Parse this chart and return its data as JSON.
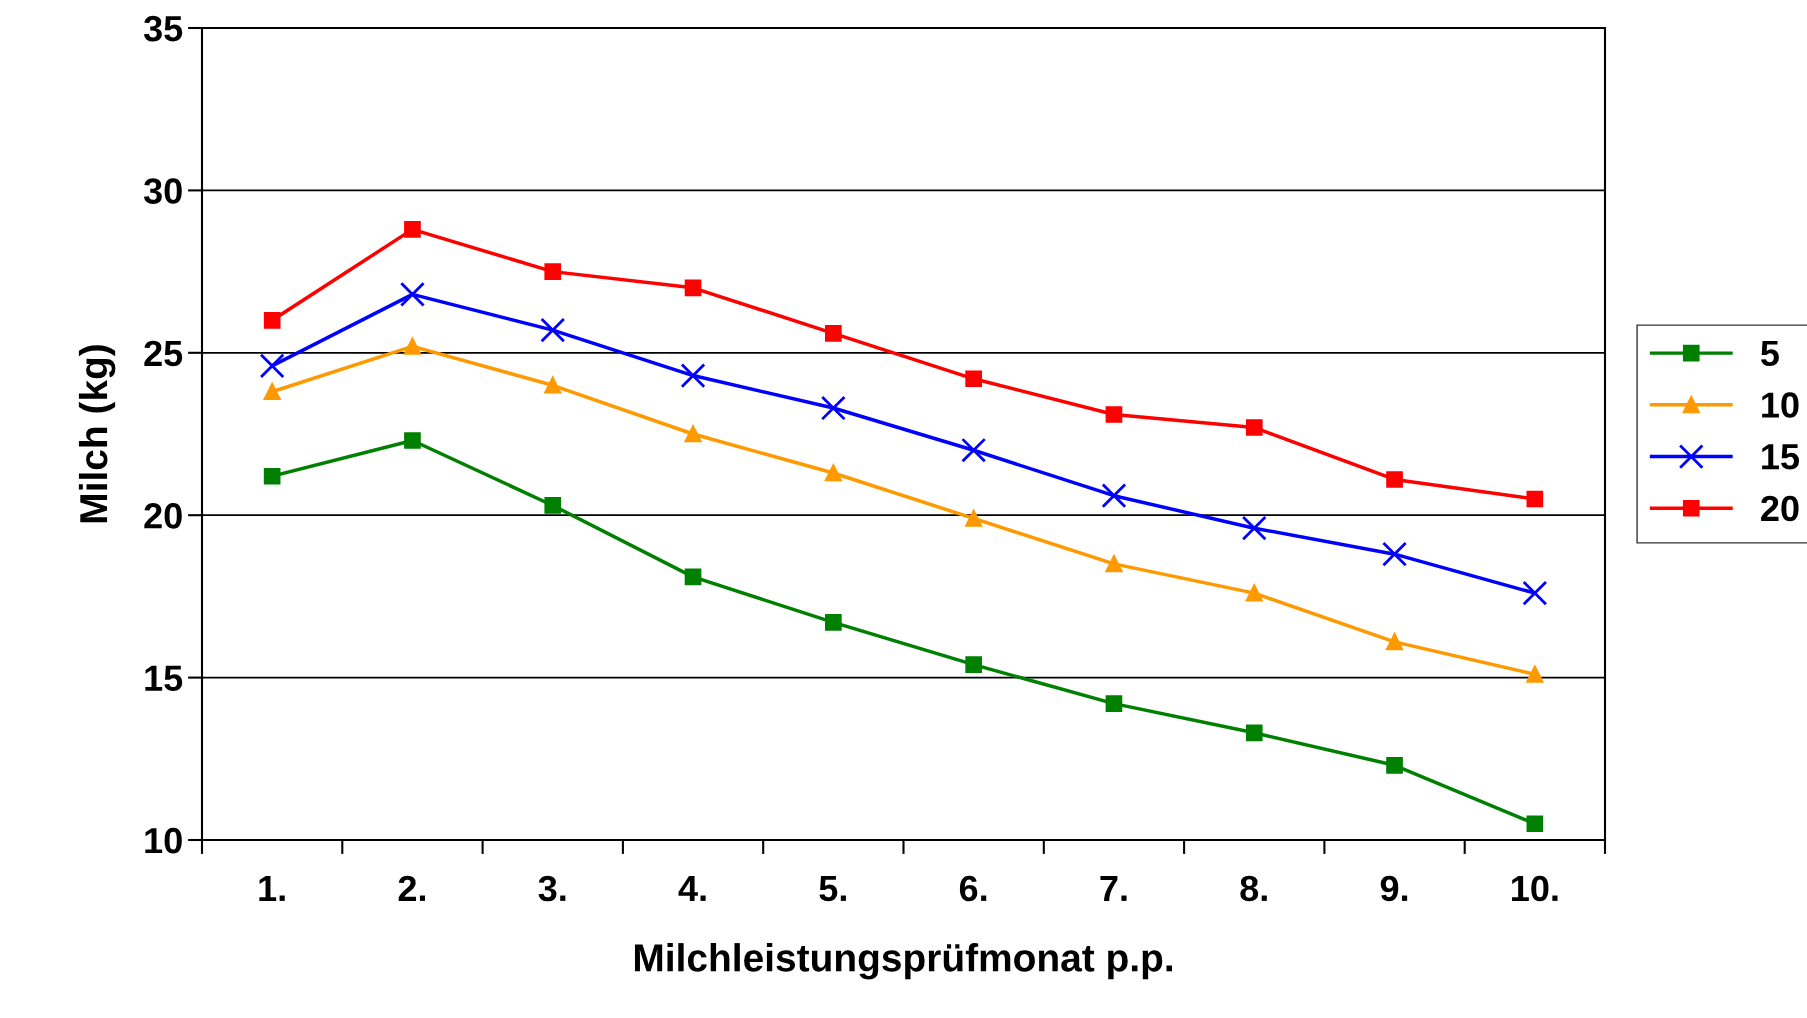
{
  "chart_data": {
    "type": "line",
    "xlabel": "Milchleistungsprüfmonat p.p.",
    "ylabel": "Milch (kg)",
    "categories": [
      "1.",
      "2.",
      "3.",
      "4.",
      "5.",
      "6.",
      "7.",
      "8.",
      "9.",
      "10."
    ],
    "ylim": [
      10,
      35
    ],
    "yticks": [
      10,
      15,
      20,
      25,
      30,
      35
    ],
    "grid": "y",
    "legend": "right",
    "series": [
      {
        "name": "5",
        "color": "#008000",
        "marker": "square",
        "values": [
          21.2,
          22.3,
          20.3,
          18.1,
          16.7,
          15.4,
          14.2,
          13.3,
          12.3,
          10.5
        ]
      },
      {
        "name": "10",
        "color": "#ff9900",
        "marker": "triangle",
        "values": [
          23.8,
          25.2,
          24.0,
          22.5,
          21.3,
          19.9,
          18.5,
          17.6,
          16.1,
          15.1
        ]
      },
      {
        "name": "15",
        "color": "#0000ff",
        "marker": "cross",
        "values": [
          24.6,
          26.8,
          25.7,
          24.3,
          23.3,
          22.0,
          20.6,
          19.6,
          18.8,
          17.6
        ]
      },
      {
        "name": "20",
        "color": "#ff0000",
        "marker": "square",
        "values": [
          26.0,
          28.8,
          27.5,
          27.0,
          25.6,
          24.2,
          23.1,
          22.7,
          21.1,
          20.5
        ]
      }
    ]
  }
}
